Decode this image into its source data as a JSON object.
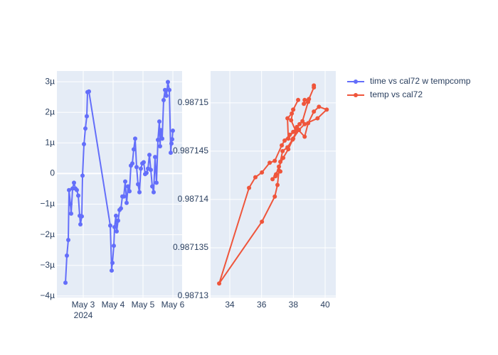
{
  "chart_data": [
    {
      "type": "line",
      "ylim": [
        -4.05e-06,
        3.35e-06
      ],
      "yticks": [
        {
          "value": 3e-06,
          "label": "3µ"
        },
        {
          "value": 2e-06,
          "label": "2µ"
        },
        {
          "value": 1e-06,
          "label": "1µ"
        },
        0,
        {
          "value": -1e-06,
          "label": "−1µ"
        },
        {
          "value": -2e-06,
          "label": "−2µ"
        },
        {
          "value": -3e-06,
          "label": "−3µ"
        },
        {
          "value": -4e-06,
          "label": "−4µ"
        }
      ],
      "xlim": [
        "2024-05-02T02:51",
        "2024-05-06T07:26"
      ],
      "xticks": [
        {
          "value": "2024-05-03T00:00",
          "label": "May 3"
        },
        {
          "value": "2024-05-04T00:00",
          "label": "May 4"
        },
        {
          "value": "2024-05-05T00:00",
          "label": "May 5"
        },
        {
          "value": "2024-05-06T00:00",
          "label": "May 6"
        }
      ],
      "x_year_label": "2024",
      "grid": true,
      "x": [
        "2024-05-02T09:43",
        "2024-05-02T10:51",
        "2024-05-02T12:00",
        "2024-05-02T12:34",
        "2024-05-02T13:43",
        "2024-05-02T14:17",
        "2024-05-02T15:26",
        "2024-05-02T16:34",
        "2024-05-02T17:43",
        "2024-05-02T18:51",
        "2024-05-02T20:00",
        "2024-05-02T21:09",
        "2024-05-02T21:43",
        "2024-05-02T22:51",
        "2024-05-02T23:26",
        "2024-05-03T00:34",
        "2024-05-03T01:43",
        "2024-05-03T02:51",
        "2024-05-03T03:26",
        "2024-05-03T04:34",
        "2024-05-03T21:43",
        "2024-05-03T22:51",
        "2024-05-03T23:26",
        "2024-05-04T00:34",
        "2024-05-04T01:09",
        "2024-05-04T02:17",
        "2024-05-04T02:51",
        "2024-05-04T04:00",
        "2024-05-04T05:09",
        "2024-05-04T06:17",
        "2024-05-04T07:26",
        "2024-05-04T08:34",
        "2024-05-04T09:43",
        "2024-05-04T10:51",
        "2024-05-04T12:00",
        "2024-05-04T13:09",
        "2024-05-04T14:17",
        "2024-05-04T15:26",
        "2024-05-04T16:34",
        "2024-05-04T17:43",
        "2024-05-04T18:51",
        "2024-05-04T20:00",
        "2024-05-04T21:09",
        "2024-05-04T22:17",
        "2024-05-04T23:26",
        "2024-05-05T00:34",
        "2024-05-05T01:43",
        "2024-05-05T02:51",
        "2024-05-05T04:00",
        "2024-05-05T05:09",
        "2024-05-05T06:17",
        "2024-05-05T07:26",
        "2024-05-05T08:34",
        "2024-05-05T09:43",
        "2024-05-05T10:51",
        "2024-05-05T12:00",
        "2024-05-05T13:09",
        "2024-05-05T13:43",
        "2024-05-05T14:17",
        "2024-05-05T15:26",
        "2024-05-05T16:34",
        "2024-05-05T17:43",
        "2024-05-05T18:51",
        "2024-05-05T20:00",
        "2024-05-05T21:09",
        "2024-05-05T22:17",
        "2024-05-05T22:51",
        "2024-05-05T23:26",
        "2024-05-06T00:00"
      ],
      "series": [
        {
          "name": "time vs cal72 w tempcomp",
          "color": "#636efa",
          "values": [
            -3.57e-06,
            -2.68e-06,
            -2.17e-06,
            -5.4e-07,
            -1e-06,
            -1.31e-06,
            -4.9e-07,
            -3e-07,
            -4.9e-07,
            -5.4e-07,
            -7.2e-07,
            -1.38e-06,
            -1.66e-06,
            -1.4e-06,
            -7e-08,
            9.6e-07,
            1.47e-06,
            1.87e-06,
            2.66e-06,
            2.68e-06,
            -1.7e-06,
            -3.17e-06,
            -2.92e-06,
            -2.36e-06,
            -1.75e-06,
            -1.38e-06,
            -1.89e-06,
            -1.54e-06,
            -1.19e-06,
            -1.14e-06,
            -7.5e-07,
            -7.5e-07,
            -2.6e-07,
            -9.6e-07,
            -4.2e-07,
            -5.8e-07,
            2.6e-07,
            3.3e-07,
            7.9e-07,
            1.14e-06,
            2.1e-07,
            -3.5e-07,
            -6.1e-07,
            1.6e-07,
            3.3e-07,
            3.7e-07,
            -2e-08,
            2e-08,
            1.6e-07,
            6.1e-07,
            1.2e-07,
            -4.2e-07,
            -6.1e-07,
            5.4e-07,
            -3e-07,
            1.1e-06,
            1.7e-06,
            8.9e-07,
            1.42e-06,
            1.14e-06,
            2.4e-06,
            2.73e-06,
            2.54e-06,
            2.99e-06,
            2.73e-06,
            6.8e-07,
            9.8e-07,
            1.12e-06,
            1.4e-06
          ]
        }
      ]
    },
    {
      "type": "line",
      "ylim": [
        0.98712985,
        0.9871533
      ],
      "yticks": [
        0.98715,
        0.987145,
        0.98714,
        0.987135,
        0.98713
      ],
      "xlim": [
        32.79,
        40.67
      ],
      "xticks": [
        34,
        36,
        38,
        40
      ],
      "grid": true,
      "x": [
        39.29,
        39.29,
        38.98,
        38.71,
        38.66,
        38.93,
        38.57,
        38.39,
        38.22,
        37.99,
        37.68,
        37.63,
        37.9,
        37.99,
        38.3,
        37.99,
        37.86,
        38.17,
        37.95,
        37.63,
        37.32,
        37.18,
        37.09,
        37.0,
        36.83,
        36.02,
        33.33,
        35.21,
        35.61,
        36.02,
        36.51,
        36.83,
        37.27,
        37.45,
        37.77,
        38.26,
        38.71,
        38.93,
        39.29,
        39.61,
        40.1,
        39.52,
        38.71,
        38.35,
        37.99,
        37.68,
        37.36,
        37.09,
        36.91,
        36.69,
        36.87,
        37.18
      ],
      "series": [
        {
          "name": "temp vs cal72",
          "color": "#EF553B",
          "values": [
            0.9871518,
            0.9871516,
            0.9871504,
            0.9871503,
            0.9871499,
            0.9871501,
            0.9871481,
            0.9871478,
            0.9871475,
            0.987147,
            0.9871463,
            0.9871484,
            0.9871489,
            0.9871493,
            0.9871503,
            0.9871493,
            0.9871482,
            0.987147,
            0.9871462,
            0.9871454,
            0.987145,
            0.9871439,
            0.987143,
            0.9871415,
            0.9871403,
            0.9871377,
            0.9871313,
            0.9871412,
            0.9871423,
            0.9871428,
            0.9871438,
            0.987144,
            0.9871456,
            0.9871461,
            0.9871467,
            0.9871473,
            0.9871465,
            0.9871479,
            0.9871491,
            0.9871496,
            0.9871493,
            0.9871484,
            0.9871478,
            0.9871472,
            0.9871463,
            0.9871452,
            0.9871443,
            0.9871434,
            0.9871426,
            0.9871421,
            0.9871424,
            0.9871429
          ]
        }
      ]
    }
  ]
}
